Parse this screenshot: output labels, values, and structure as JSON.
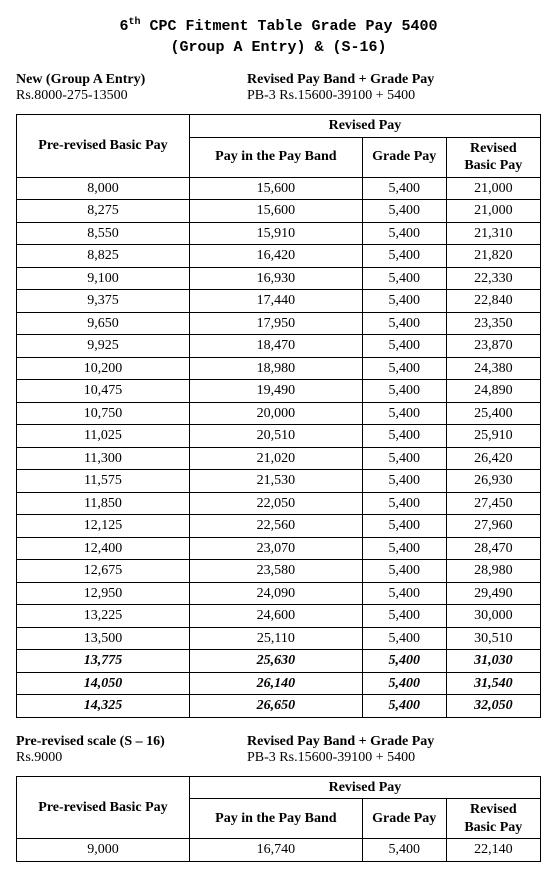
{
  "title_line1_pre": "6",
  "title_line1_sup": "th",
  "title_line1_post": " CPC Fitment Table Grade Pay 5400",
  "title_line2": "(Group A Entry) & (S-16)",
  "section1": {
    "left_bold": "New (Group A Entry)",
    "left_plain": "Rs.8000-275-13500",
    "right_bold": "Revised Pay Band + Grade Pay",
    "right_plain": "PB-3 Rs.15600-39100 + 5400"
  },
  "table_headers": {
    "prerevised": "Pre-revised Basic Pay",
    "revised": "Revised Pay",
    "payband": "Pay in the Pay Band",
    "gradepay": "Grade Pay",
    "revisedbasic": "Revised Basic Pay"
  },
  "table1_rows": [
    {
      "prb": "8,000",
      "pb": "15,600",
      "gp": "5,400",
      "rbp": "21,000",
      "italic": false
    },
    {
      "prb": "8,275",
      "pb": "15,600",
      "gp": "5,400",
      "rbp": "21,000",
      "italic": false
    },
    {
      "prb": "8,550",
      "pb": "15,910",
      "gp": "5,400",
      "rbp": "21,310",
      "italic": false
    },
    {
      "prb": "8,825",
      "pb": "16,420",
      "gp": "5,400",
      "rbp": "21,820",
      "italic": false
    },
    {
      "prb": "9,100",
      "pb": "16,930",
      "gp": "5,400",
      "rbp": "22,330",
      "italic": false
    },
    {
      "prb": "9,375",
      "pb": "17,440",
      "gp": "5,400",
      "rbp": "22,840",
      "italic": false
    },
    {
      "prb": "9,650",
      "pb": "17,950",
      "gp": "5,400",
      "rbp": "23,350",
      "italic": false
    },
    {
      "prb": "9,925",
      "pb": "18,470",
      "gp": "5,400",
      "rbp": "23,870",
      "italic": false
    },
    {
      "prb": "10,200",
      "pb": "18,980",
      "gp": "5,400",
      "rbp": "24,380",
      "italic": false
    },
    {
      "prb": "10,475",
      "pb": "19,490",
      "gp": "5,400",
      "rbp": "24,890",
      "italic": false
    },
    {
      "prb": "10,750",
      "pb": "20,000",
      "gp": "5,400",
      "rbp": "25,400",
      "italic": false
    },
    {
      "prb": "11,025",
      "pb": "20,510",
      "gp": "5,400",
      "rbp": "25,910",
      "italic": false
    },
    {
      "prb": "11,300",
      "pb": "21,020",
      "gp": "5,400",
      "rbp": "26,420",
      "italic": false
    },
    {
      "prb": "11,575",
      "pb": "21,530",
      "gp": "5,400",
      "rbp": "26,930",
      "italic": false
    },
    {
      "prb": "11,850",
      "pb": "22,050",
      "gp": "5,400",
      "rbp": "27,450",
      "italic": false
    },
    {
      "prb": "12,125",
      "pb": "22,560",
      "gp": "5,400",
      "rbp": "27,960",
      "italic": false
    },
    {
      "prb": "12,400",
      "pb": "23,070",
      "gp": "5,400",
      "rbp": "28,470",
      "italic": false
    },
    {
      "prb": "12,675",
      "pb": "23,580",
      "gp": "5,400",
      "rbp": "28,980",
      "italic": false
    },
    {
      "prb": "12,950",
      "pb": "24,090",
      "gp": "5,400",
      "rbp": "29,490",
      "italic": false
    },
    {
      "prb": "13,225",
      "pb": "24,600",
      "gp": "5,400",
      "rbp": "30,000",
      "italic": false
    },
    {
      "prb": "13,500",
      "pb": "25,110",
      "gp": "5,400",
      "rbp": "30,510",
      "italic": false
    },
    {
      "prb": "13,775",
      "pb": "25,630",
      "gp": "5,400",
      "rbp": "31,030",
      "italic": true
    },
    {
      "prb": "14,050",
      "pb": "26,140",
      "gp": "5,400",
      "rbp": "31,540",
      "italic": true
    },
    {
      "prb": "14,325",
      "pb": "26,650",
      "gp": "5,400",
      "rbp": "32,050",
      "italic": true
    }
  ],
  "section2": {
    "left_bold": "Pre-revised scale (S – 16)",
    "left_plain": "Rs.9000",
    "right_bold": "Revised Pay Band + Grade Pay",
    "right_plain": "PB-3 Rs.15600-39100 + 5400"
  },
  "table2_rows": [
    {
      "prb": "9,000",
      "pb": "16,740",
      "gp": "5,400",
      "rbp": "22,140",
      "italic": false
    }
  ]
}
